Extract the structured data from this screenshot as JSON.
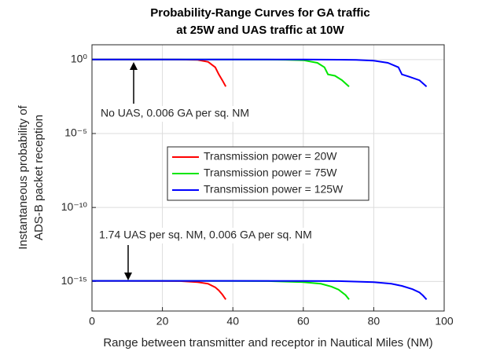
{
  "chart_data": {
    "type": "line",
    "title": [
      "Probability-Range Curves for GA traffic",
      "at 25W and UAS traffic at 10W"
    ],
    "x_label": "Range between transmitter and receptor in Nautical Miles (NM)",
    "y_label": [
      "Instantaneous probability of",
      "ADS-B packet reception"
    ],
    "log_y": true,
    "grid": true,
    "legend": "center",
    "xlim": [
      0,
      100
    ],
    "xticks": [
      0,
      20,
      40,
      60,
      80,
      100
    ],
    "ylim": [
      1e-17,
      10
    ],
    "yticks": [
      {
        "value": 1,
        "label": "10⁰"
      },
      {
        "value": 1e-05,
        "label": "10⁻⁵"
      },
      {
        "value": 1e-10,
        "label": "10⁻¹⁰"
      },
      {
        "value": 1e-15,
        "label": "10⁻¹⁵"
      }
    ],
    "annotations": [
      "No UAS, 0.006 GA per sq. NM",
      "1.74 UAS per sq. NM, 0.006 GA per sq. NM"
    ],
    "series": [
      {
        "name": "Transmission power = 20W",
        "color": "#ff0000",
        "curves": [
          {
            "x": [
              0,
              10,
              20,
              25,
              30,
              33,
              35,
              36,
              37,
              38
            ],
            "values": [
              1,
              1,
              1,
              0.99,
              0.95,
              0.7,
              0.3,
              0.1,
              0.04,
              0.015
            ]
          },
          {
            "x": [
              0,
              10,
              20,
              25,
              30,
              33,
              35,
              36,
              37,
              38
            ],
            "values": [
              1.1e-15,
              1.1e-15,
              1.08e-15,
              1.05e-15,
              9e-16,
              7e-16,
              4e-16,
              2.5e-16,
              1.3e-16,
              6e-17
            ]
          }
        ]
      },
      {
        "name": "Transmission power = 75W",
        "color": "#00e600",
        "curves": [
          {
            "x": [
              0,
              20,
              40,
              50,
              55,
              60,
              64,
              66,
              67,
              69,
              71,
              73
            ],
            "values": [
              1,
              1,
              1,
              0.99,
              0.97,
              0.9,
              0.6,
              0.3,
              0.1,
              0.08,
              0.04,
              0.015
            ]
          },
          {
            "x": [
              0,
              20,
              40,
              50,
              60,
              65,
              68,
              70,
              72,
              73
            ],
            "values": [
              1.1e-15,
              1.1e-15,
              1.08e-15,
              1.05e-15,
              9e-16,
              7e-16,
              4.5e-16,
              2.8e-16,
              1.2e-16,
              6e-17
            ]
          }
        ]
      },
      {
        "name": "Transmission power = 125W",
        "color": "#0000ff",
        "curves": [
          {
            "x": [
              0,
              20,
              40,
              60,
              70,
              75,
              80,
              84,
              87,
              88,
              90,
              93,
              95
            ],
            "values": [
              1,
              1,
              1,
              1,
              0.98,
              0.95,
              0.85,
              0.6,
              0.3,
              0.1,
              0.07,
              0.04,
              0.015
            ]
          },
          {
            "x": [
              0,
              20,
              40,
              60,
              70,
              80,
              85,
              88,
              91,
              93,
              94,
              95
            ],
            "values": [
              1.1e-15,
              1.1e-15,
              1.1e-15,
              1.08e-15,
              1.05e-15,
              9e-16,
              7e-16,
              5e-16,
              3e-16,
              1.8e-16,
              1.1e-16,
              6e-17
            ]
          }
        ]
      }
    ]
  }
}
